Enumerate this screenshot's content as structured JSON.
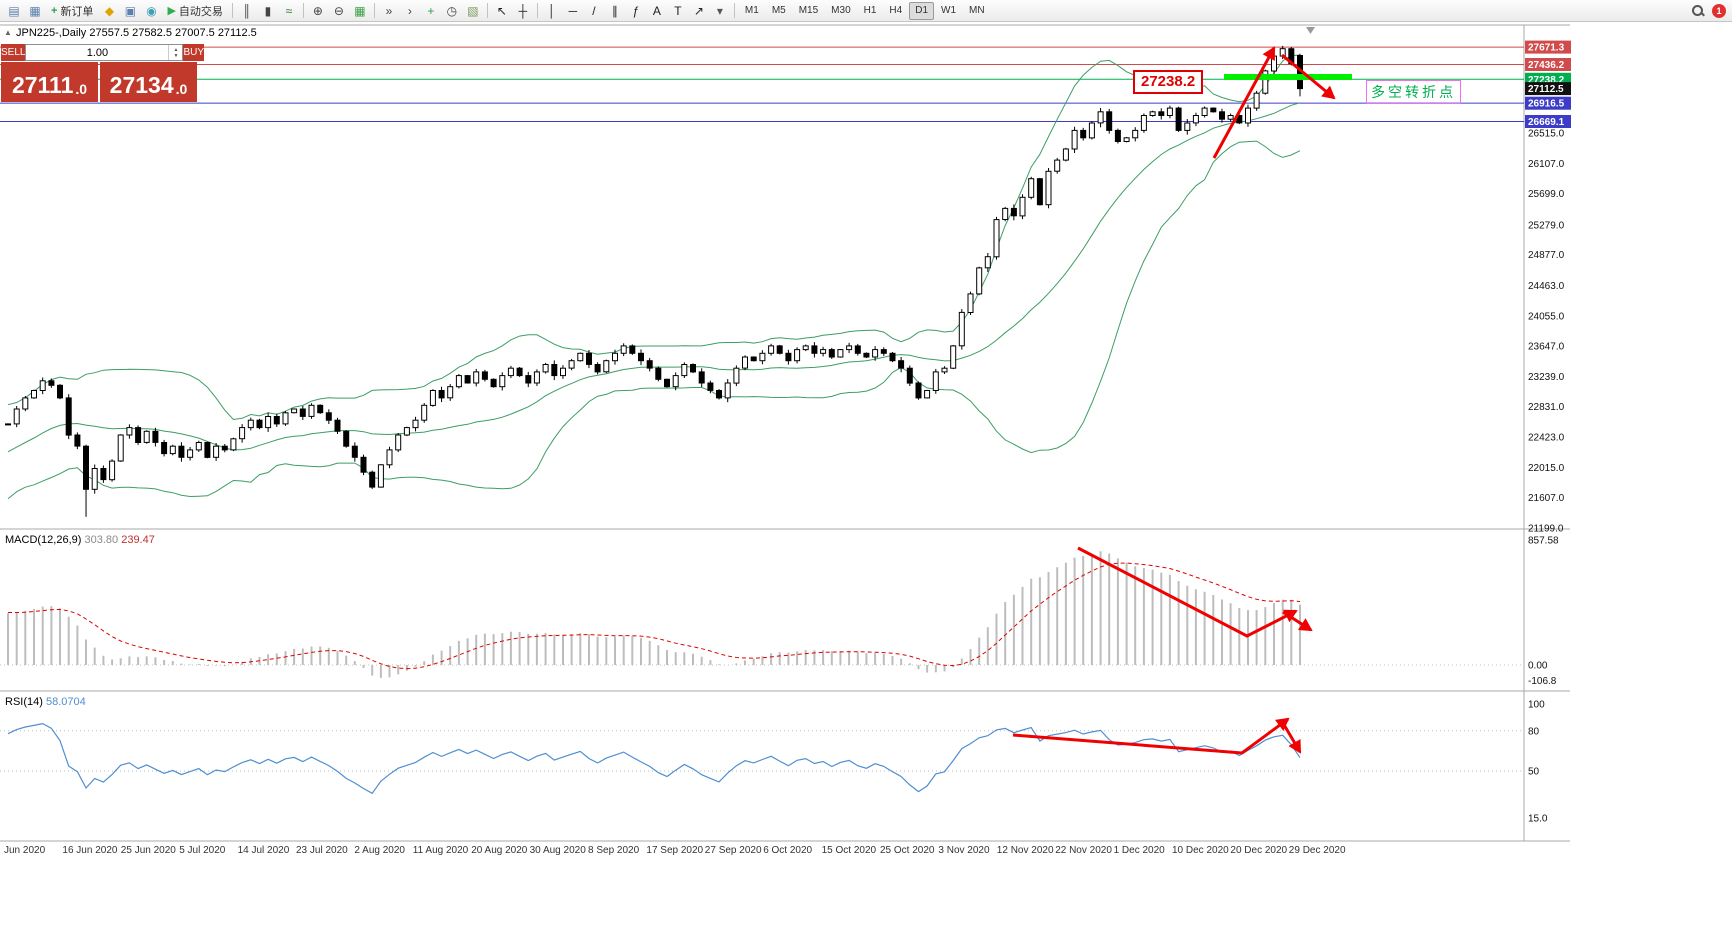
{
  "colors": {
    "accent_red": "#f00000",
    "level_red": "#d04b4b",
    "level_green": "#00b050",
    "level_blue": "#3c3cc8",
    "highlight_green": "#00ee00",
    "bands_green": "#3c9e63",
    "macd_hist": "#bdbdbd",
    "macd_signal": "#e00000",
    "rsi_blue": "#4f8fd0",
    "trade_red": "#c0392b"
  },
  "toolbar": {
    "items": [
      {
        "t": "icon",
        "name": "new-chart-icon",
        "glyph": "▤",
        "color": "#5b7fae"
      },
      {
        "t": "icon",
        "name": "profiles-icon",
        "glyph": "▦",
        "color": "#5b7fae"
      },
      {
        "t": "btn",
        "name": "new-order-button",
        "label": "新订单",
        "glyph": "+",
        "color": "#2e9e4f"
      },
      {
        "t": "icon",
        "name": "indicator-diamond-icon",
        "glyph": "◆",
        "color": "#e0a400"
      },
      {
        "t": "icon",
        "name": "depth-of-market-icon",
        "glyph": "▣",
        "color": "#5b7fae"
      },
      {
        "t": "icon",
        "name": "history-center-icon",
        "glyph": "◉",
        "color": "#3da0b4"
      },
      {
        "t": "btn",
        "name": "autotrading-button",
        "label": "自动交易",
        "glyph": "▶",
        "color": "#2eae4f"
      },
      {
        "t": "sep"
      },
      {
        "t": "icon",
        "name": "bar-chart-icon",
        "glyph": "║",
        "color": "#444444"
      },
      {
        "t": "icon",
        "name": "candlestick-chart-icon",
        "glyph": "▮",
        "color": "#444444"
      },
      {
        "t": "icon",
        "name": "line-chart-icon",
        "glyph": "≈",
        "color": "#2a7d2a"
      },
      {
        "t": "sep"
      },
      {
        "t": "icon",
        "name": "zoom-in-icon",
        "glyph": "⊕",
        "color": "#444444"
      },
      {
        "t": "icon",
        "name": "zoom-out-icon",
        "glyph": "⊖",
        "color": "#444444"
      },
      {
        "t": "icon",
        "name": "tile-windows-icon",
        "glyph": "▦",
        "color": "#3da04a"
      },
      {
        "t": "sep"
      },
      {
        "t": "icon",
        "name": "auto-scroll-icon",
        "glyph": "»",
        "color": "#444444"
      },
      {
        "t": "icon",
        "name": "chart-shift-icon",
        "glyph": "›",
        "color": "#444444"
      },
      {
        "t": "icon",
        "name": "indicators-list-icon",
        "glyph": "+",
        "color": "#2e9e4f"
      },
      {
        "t": "icon",
        "name": "period-clock-icon",
        "glyph": "◷",
        "color": "#444444"
      },
      {
        "t": "icon",
        "name": "templates-icon",
        "glyph": "▧",
        "color": "#7a9a5a"
      },
      {
        "t": "sep"
      },
      {
        "t": "icon",
        "name": "cursor-icon",
        "glyph": "↖",
        "color": "#222222"
      },
      {
        "t": "icon",
        "name": "crosshair-icon",
        "glyph": "┼",
        "color": "#222222"
      },
      {
        "t": "sep"
      },
      {
        "t": "icon",
        "name": "vertical-line-icon",
        "glyph": "│",
        "color": "#222222"
      },
      {
        "t": "icon",
        "name": "horizontal-line-icon",
        "glyph": "─",
        "color": "#222222"
      },
      {
        "t": "icon",
        "name": "trendline-icon",
        "glyph": "/",
        "color": "#222222"
      },
      {
        "t": "icon",
        "name": "equidistant-channel-icon",
        "glyph": "∥",
        "color": "#222222"
      },
      {
        "t": "icon",
        "name": "fibonacci-icon",
        "glyph": "ƒ",
        "color": "#222222"
      },
      {
        "t": "icon",
        "name": "text-icon",
        "glyph": "A",
        "color": "#222222"
      },
      {
        "t": "icon",
        "name": "text-label-icon",
        "glyph": "T",
        "color": "#222222"
      },
      {
        "t": "icon",
        "name": "arrows-tool-icon",
        "glyph": "↗",
        "color": "#222222"
      },
      {
        "t": "icon",
        "name": "tools-dropdown-icon",
        "glyph": "▾",
        "color": "#555555"
      },
      {
        "t": "sep"
      }
    ],
    "timeframes": [
      "M1",
      "M5",
      "M15",
      "M30",
      "H1",
      "H4",
      "D1",
      "W1",
      "MN"
    ],
    "active_timeframe": "D1",
    "notification_count": "1"
  },
  "chart": {
    "symbol_ohlc_line": "JPN225-,Daily 27557.5 27582.5 27007.5 27112.5",
    "trade_panel": {
      "sell_label": "SELL",
      "buy_label": "BUY",
      "lot_value": "1.00",
      "sell_price_int": "27111",
      "sell_price_frac": ".0",
      "buy_price_int": "27134",
      "buy_price_frac": ".0"
    },
    "price_labels": [
      {
        "text": "27671.3",
        "price": 27671.3,
        "color": "#d04b4b",
        "line": true
      },
      {
        "text": "27436.2",
        "price": 27436.2,
        "color": "#d04b4b",
        "line": true
      },
      {
        "text": "27238.2",
        "price": 27238.2,
        "color": "#00b050",
        "line": true
      },
      {
        "text": "27112.5",
        "price": 27112.5,
        "color": "#111111",
        "line": false
      },
      {
        "text": "26916.5",
        "price": 26916.5,
        "color": "#3c3cc8",
        "line": true
      },
      {
        "text": "26669.1",
        "price": 26669.1,
        "color": "#3c3cc8",
        "line": true
      }
    ],
    "scale_ticks": [
      {
        "text": "26515.0",
        "price": 26515.0
      },
      {
        "text": "26107.0",
        "price": 26107.0
      },
      {
        "text": "25699.0",
        "price": 25699.0
      },
      {
        "text": "25279.0",
        "price": 25279.0
      },
      {
        "text": "24877.0",
        "price": 24877.0
      },
      {
        "text": "24463.0",
        "price": 24463.0
      },
      {
        "text": "24055.0",
        "price": 24055.0
      },
      {
        "text": "23647.0",
        "price": 23647.0
      },
      {
        "text": "23239.0",
        "price": 23239.0
      },
      {
        "text": "22831.0",
        "price": 22831.0
      },
      {
        "text": "22423.0",
        "price": 22423.0
      },
      {
        "text": "22015.0",
        "price": 22015.0
      },
      {
        "text": "21607.0",
        "price": 21607.0
      },
      {
        "text": "21199.0",
        "price": 21199.0
      }
    ],
    "dates": [
      "Jun 2020",
      "16 Jun 2020",
      "25 Jun 2020",
      "5 Jul 2020",
      "14 Jul 2020",
      "23 Jul 2020",
      "2 Aug 2020",
      "11 Aug 2020",
      "20 Aug 2020",
      "30 Aug 2020",
      "8 Sep 2020",
      "17 Sep 2020",
      "27 Sep 2020",
      "6 Oct 2020",
      "15 Oct 2020",
      "25 Oct 2020",
      "3 Nov 2020",
      "12 Nov 2020",
      "22 Nov 2020",
      "1 Dec 2020",
      "10 Dec 2020",
      "20 Dec 2020",
      "29 Dec 2020"
    ],
    "annotations": {
      "callout_price": "27238.2",
      "turning_point": "多空转折点"
    }
  },
  "macd": {
    "name": "MACD(12,26,9)",
    "value_main": "303.80",
    "value_signal": "239.47",
    "scale": [
      {
        "text": "857.58",
        "value": 857.58
      },
      {
        "text": "0.00",
        "value": 0
      },
      {
        "text": "-106.8",
        "value": -106.8
      }
    ]
  },
  "rsi": {
    "name": "RSI(14)",
    "value": "58.0704",
    "scale": [
      {
        "text": "100",
        "value": 100
      },
      {
        "text": "80",
        "value": 80
      },
      {
        "text": "50",
        "value": 50
      },
      {
        "text": "15.0",
        "value": 15
      }
    ],
    "levels": [
      80,
      50
    ]
  },
  "chart_data": {
    "type": "candlestick+indicators",
    "symbol": "JPN225",
    "timeframe": "Daily",
    "price_axis_range": [
      21199.0,
      27901.0
    ],
    "last_candle": {
      "o": 27557.5,
      "h": 27582.5,
      "l": 27007.5,
      "c": 27112.5
    },
    "spike_index": 9,
    "june_spike_low": 21350,
    "indicators": {
      "bollinger": {
        "period": 20,
        "dev": 2
      },
      "macd": {
        "fast": 12,
        "slow": 26,
        "signal": 9
      },
      "rsi": {
        "period": 14
      }
    },
    "pre_closes": [
      20700,
      20850,
      20800,
      20950,
      21100,
      21050,
      21200,
      21350,
      21300,
      21450,
      21600,
      21550,
      21700,
      21850,
      21800,
      21950,
      22100,
      22050,
      22200,
      22150,
      22300,
      22250,
      22400,
      22350,
      22500,
      22450,
      22550,
      22500,
      22650,
      22600
    ],
    "closes": [
      22600,
      22800,
      22950,
      23050,
      23180,
      23120,
      22950,
      22450,
      22300,
      21720,
      22000,
      21850,
      22100,
      22450,
      22550,
      22350,
      22500,
      22350,
      22200,
      22300,
      22150,
      22250,
      22350,
      22150,
      22300,
      22250,
      22400,
      22550,
      22650,
      22550,
      22700,
      22600,
      22750,
      22800,
      22700,
      22850,
      22750,
      22650,
      22500,
      22300,
      22150,
      21950,
      21750,
      22050,
      22250,
      22450,
      22550,
      22650,
      22850,
      23050,
      22950,
      23100,
      23250,
      23150,
      23300,
      23200,
      23100,
      23250,
      23350,
      23250,
      23150,
      23300,
      23400,
      23250,
      23350,
      23450,
      23550,
      23400,
      23300,
      23450,
      23550,
      23650,
      23550,
      23450,
      23350,
      23200,
      23100,
      23250,
      23400,
      23300,
      23150,
      23050,
      22950,
      23150,
      23350,
      23500,
      23450,
      23550,
      23650,
      23550,
      23450,
      23600,
      23650,
      23550,
      23600,
      23500,
      23600,
      23650,
      23550,
      23500,
      23600,
      23550,
      23450,
      23350,
      23150,
      22950,
      23050,
      23300,
      23350,
      23650,
      24100,
      24350,
      24700,
      24850,
      25350,
      25500,
      25400,
      25650,
      25900,
      25550,
      26000,
      26150,
      26300,
      26550,
      26450,
      26650,
      26800,
      26550,
      26400,
      26450,
      26550,
      26750,
      26800,
      26750,
      26850,
      26550,
      26650,
      26750,
      26850,
      26800,
      26700,
      26750,
      26650,
      26850,
      27050,
      27350,
      27550,
      27650,
      27450,
      27112.5
    ]
  }
}
